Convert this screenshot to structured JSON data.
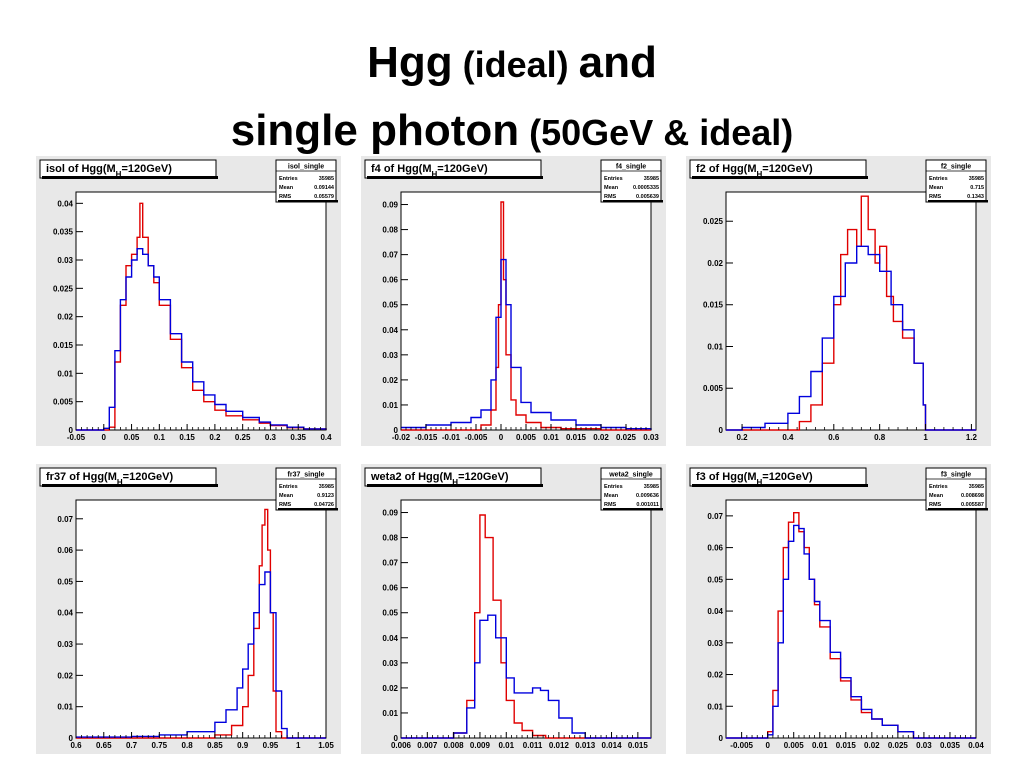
{
  "slide": {
    "title_line1_big": "Hgg",
    "title_line1_small": " (ideal) ",
    "title_line1_end": "and",
    "title_line2_big": "single photon",
    "title_line2_small": " (50GeV & ideal)"
  },
  "colors": {
    "signal": "#e00000",
    "single": "#0000dd",
    "frame": "#000000",
    "plot_bg": "#ffffff",
    "pad_bg": "#e8e8e8"
  },
  "chart_data": [
    {
      "type": "line",
      "title": "isol of Hgg(M_H=120GeV)",
      "stats": {
        "name": "isol_single",
        "entries": "35985",
        "mean": "0.09144",
        "rms": "0.05579"
      },
      "xlim": [
        -0.05,
        0.4
      ],
      "ylim": [
        0,
        0.042
      ],
      "xticks": [
        "-0.05",
        "0",
        "0.05",
        "0.1",
        "0.15",
        "0.2",
        "0.25",
        "0.3",
        "0.35",
        "0.4"
      ],
      "xtick_values": [
        -0.05,
        0,
        0.05,
        0.1,
        0.15,
        0.2,
        0.25,
        0.3,
        0.35,
        0.4
      ],
      "yticks": [
        "0.005",
        "0.01",
        "0.015",
        "0.02",
        "0.025",
        "0.03",
        "0.035",
        "0.04"
      ],
      "ytick_values": [
        0.005,
        0.01,
        0.015,
        0.02,
        0.025,
        0.03,
        0.035,
        0.04
      ],
      "series": [
        {
          "color": "#e00000",
          "x": [
            -0.05,
            0.0,
            0.01,
            0.02,
            0.03,
            0.04,
            0.05,
            0.06,
            0.065,
            0.07,
            0.08,
            0.09,
            0.1,
            0.12,
            0.14,
            0.16,
            0.18,
            0.2,
            0.22,
            0.25,
            0.28,
            0.3,
            0.33,
            0.36,
            0.4
          ],
          "y": [
            0,
            0,
            0.0005,
            0.012,
            0.022,
            0.029,
            0.031,
            0.034,
            0.04,
            0.034,
            0.029,
            0.026,
            0.022,
            0.016,
            0.011,
            0.007,
            0.005,
            0.0035,
            0.0025,
            0.0018,
            0.0012,
            0.0008,
            0.0004,
            0.0002,
            0
          ]
        },
        {
          "color": "#0000dd",
          "x": [
            -0.05,
            -0.01,
            0.0,
            0.01,
            0.02,
            0.03,
            0.04,
            0.05,
            0.06,
            0.07,
            0.08,
            0.09,
            0.1,
            0.12,
            0.14,
            0.16,
            0.18,
            0.2,
            0.22,
            0.25,
            0.28,
            0.3,
            0.33,
            0.36,
            0.4
          ],
          "y": [
            0,
            0,
            0.0003,
            0.004,
            0.014,
            0.023,
            0.027,
            0.03,
            0.032,
            0.031,
            0.029,
            0.027,
            0.023,
            0.017,
            0.012,
            0.0085,
            0.0062,
            0.0045,
            0.0033,
            0.0022,
            0.0014,
            0.0009,
            0.0005,
            0.0002,
            0
          ]
        }
      ]
    },
    {
      "type": "line",
      "title": "f4 of Hgg(M_H=120GeV)",
      "stats": {
        "name": "f4_single",
        "entries": "35985",
        "mean": "0.0005335",
        "rms": "0.005639"
      },
      "xlim": [
        -0.02,
        0.03
      ],
      "ylim": [
        0,
        0.095
      ],
      "xticks": [
        "-0.02",
        "-0.015",
        "-0.01",
        "-0.005",
        "0",
        "0.005",
        "0.01",
        "0.015",
        "0.02",
        "0.025",
        "0.03"
      ],
      "xtick_values": [
        -0.02,
        -0.015,
        -0.01,
        -0.005,
        0,
        0.005,
        0.01,
        0.015,
        0.02,
        0.025,
        0.03
      ],
      "yticks": [
        "0.01",
        "0.02",
        "0.03",
        "0.04",
        "0.05",
        "0.06",
        "0.07",
        "0.08",
        "0.09"
      ],
      "ytick_values": [
        0.01,
        0.02,
        0.03,
        0.04,
        0.05,
        0.06,
        0.07,
        0.08,
        0.09
      ],
      "series": [
        {
          "color": "#e00000",
          "x": [
            -0.02,
            -0.008,
            -0.004,
            -0.002,
            -0.001,
            -0.0005,
            0.0,
            0.0005,
            0.001,
            0.002,
            0.003,
            0.005,
            0.008,
            0.012,
            0.02,
            0.03
          ],
          "y": [
            0,
            0,
            0.002,
            0.008,
            0.025,
            0.05,
            0.091,
            0.06,
            0.03,
            0.012,
            0.006,
            0.003,
            0.001,
            0.0005,
            0,
            0
          ]
        },
        {
          "color": "#0000dd",
          "x": [
            -0.02,
            -0.015,
            -0.01,
            -0.006,
            -0.004,
            -0.002,
            -0.001,
            0.0,
            0.001,
            0.002,
            0.004,
            0.006,
            0.01,
            0.015,
            0.02,
            0.025,
            0.03
          ],
          "y": [
            0.001,
            0.002,
            0.003,
            0.005,
            0.008,
            0.02,
            0.045,
            0.068,
            0.05,
            0.025,
            0.011,
            0.007,
            0.004,
            0.002,
            0.001,
            0.0005,
            0
          ]
        }
      ]
    },
    {
      "type": "line",
      "title": "f2 of Hgg(M_H=120GeV)",
      "stats": {
        "name": "f2_single",
        "entries": "35985",
        "mean": "0.715",
        "rms": "0.1343"
      },
      "xlim": [
        0.13,
        1.22
      ],
      "ylim": [
        0,
        0.0285
      ],
      "xticks": [
        "0.2",
        "0.4",
        "0.6",
        "0.8",
        "1",
        "1.2"
      ],
      "xtick_values": [
        0.2,
        0.4,
        0.6,
        0.8,
        1.0,
        1.2
      ],
      "yticks": [
        "0.005",
        "0.01",
        "0.015",
        "0.02",
        "0.025"
      ],
      "ytick_values": [
        0.005,
        0.01,
        0.015,
        0.02,
        0.025
      ],
      "series": [
        {
          "color": "#e00000",
          "x": [
            0.13,
            0.4,
            0.45,
            0.5,
            0.55,
            0.6,
            0.63,
            0.66,
            0.7,
            0.72,
            0.75,
            0.78,
            0.8,
            0.83,
            0.86,
            0.9,
            0.95,
            0.99,
            1.0,
            1.05,
            1.22
          ],
          "y": [
            0,
            0,
            0.001,
            0.003,
            0.008,
            0.015,
            0.021,
            0.024,
            0.022,
            0.028,
            0.024,
            0.02,
            0.022,
            0.016,
            0.013,
            0.011,
            0.008,
            0.003,
            0,
            0,
            0
          ]
        },
        {
          "color": "#0000dd",
          "x": [
            0.13,
            0.2,
            0.3,
            0.4,
            0.45,
            0.5,
            0.55,
            0.6,
            0.65,
            0.7,
            0.75,
            0.8,
            0.85,
            0.9,
            0.95,
            0.99,
            1.0,
            1.05,
            1.22
          ],
          "y": [
            0,
            0.0003,
            0.0008,
            0.002,
            0.004,
            0.007,
            0.011,
            0.016,
            0.02,
            0.022,
            0.021,
            0.019,
            0.015,
            0.012,
            0.008,
            0.003,
            0,
            0,
            0
          ]
        }
      ]
    },
    {
      "type": "line",
      "title": "fr37 of Hgg(M_H=120GeV)",
      "stats": {
        "name": "fr37_single",
        "entries": "35985",
        "mean": "0.9123",
        "rms": "0.04726"
      },
      "xlim": [
        0.6,
        1.05
      ],
      "ylim": [
        0,
        0.076
      ],
      "xticks": [
        "0.6",
        "0.65",
        "0.7",
        "0.75",
        "0.8",
        "0.85",
        "0.9",
        "0.95",
        "1",
        "1.05"
      ],
      "xtick_values": [
        0.6,
        0.65,
        0.7,
        0.75,
        0.8,
        0.85,
        0.9,
        0.95,
        1.0,
        1.05
      ],
      "yticks": [
        "0.01",
        "0.02",
        "0.03",
        "0.04",
        "0.05",
        "0.06",
        "0.07"
      ],
      "ytick_values": [
        0.01,
        0.02,
        0.03,
        0.04,
        0.05,
        0.06,
        0.07
      ],
      "series": [
        {
          "color": "#e00000",
          "x": [
            0.6,
            0.8,
            0.85,
            0.88,
            0.9,
            0.91,
            0.92,
            0.93,
            0.935,
            0.94,
            0.945,
            0.95,
            0.955,
            0.96,
            0.97,
            1.05
          ],
          "y": [
            0,
            0,
            0.001,
            0.004,
            0.01,
            0.02,
            0.035,
            0.055,
            0.068,
            0.073,
            0.06,
            0.04,
            0.015,
            0.002,
            0,
            0
          ]
        },
        {
          "color": "#0000dd",
          "x": [
            0.6,
            0.7,
            0.75,
            0.8,
            0.85,
            0.87,
            0.89,
            0.9,
            0.91,
            0.92,
            0.93,
            0.94,
            0.95,
            0.96,
            0.97,
            0.98,
            1.05
          ],
          "y": [
            0.0003,
            0.0005,
            0.001,
            0.002,
            0.005,
            0.009,
            0.016,
            0.022,
            0.03,
            0.04,
            0.049,
            0.053,
            0.04,
            0.015,
            0.003,
            0,
            0
          ]
        }
      ]
    },
    {
      "type": "line",
      "title": "weta2 of Hgg(M_H=120GeV)",
      "stats": {
        "name": "weta2_single",
        "entries": "35985",
        "mean": "0.009636",
        "rms": "0.001011"
      },
      "xlim": [
        0.006,
        0.0155
      ],
      "ylim": [
        0,
        0.095
      ],
      "xticks": [
        "0.006",
        "0.007",
        "0.008",
        "0.009",
        "0.01",
        "0.011",
        "0.012",
        "0.013",
        "0.014",
        "0.015"
      ],
      "xtick_values": [
        0.006,
        0.007,
        0.008,
        0.009,
        0.01,
        0.011,
        0.012,
        0.013,
        0.014,
        0.015
      ],
      "yticks": [
        "0.01",
        "0.02",
        "0.03",
        "0.04",
        "0.05",
        "0.06",
        "0.07",
        "0.08",
        "0.09"
      ],
      "ytick_values": [
        0.01,
        0.02,
        0.03,
        0.04,
        0.05,
        0.06,
        0.07,
        0.08,
        0.09
      ],
      "series": [
        {
          "color": "#e00000",
          "x": [
            0.006,
            0.0075,
            0.008,
            0.0085,
            0.0088,
            0.009,
            0.0092,
            0.0095,
            0.0098,
            0.01,
            0.0103,
            0.0106,
            0.011,
            0.0115,
            0.0155
          ],
          "y": [
            0,
            0,
            0.002,
            0.015,
            0.05,
            0.089,
            0.08,
            0.055,
            0.03,
            0.015,
            0.006,
            0.003,
            0.001,
            0,
            0
          ]
        },
        {
          "color": "#0000dd",
          "x": [
            0.006,
            0.0075,
            0.008,
            0.0085,
            0.0088,
            0.009,
            0.0093,
            0.0096,
            0.01,
            0.0103,
            0.0106,
            0.011,
            0.0113,
            0.0116,
            0.012,
            0.0125,
            0.013,
            0.0155
          ],
          "y": [
            0,
            0,
            0.002,
            0.012,
            0.03,
            0.047,
            0.049,
            0.04,
            0.024,
            0.018,
            0.018,
            0.02,
            0.019,
            0.015,
            0.008,
            0.002,
            0,
            0
          ]
        }
      ]
    },
    {
      "type": "line",
      "title": "f3 of Hgg(M_H=120GeV)",
      "stats": {
        "name": "f3_single",
        "entries": "35985",
        "mean": "0.008698",
        "rms": "0.005587"
      },
      "xlim": [
        -0.008,
        0.04
      ],
      "ylim": [
        0,
        0.075
      ],
      "xticks": [
        "-0.005",
        "0",
        "0.005",
        "0.01",
        "0.015",
        "0.02",
        "0.025",
        "0.03",
        "0.035",
        "0.04"
      ],
      "xtick_values": [
        -0.005,
        0,
        0.005,
        0.01,
        0.015,
        0.02,
        0.025,
        0.03,
        0.035,
        0.04
      ],
      "yticks": [
        "0.01",
        "0.02",
        "0.03",
        "0.04",
        "0.05",
        "0.06",
        "0.07"
      ],
      "ytick_values": [
        0.01,
        0.02,
        0.03,
        0.04,
        0.05,
        0.06,
        0.07
      ],
      "series": [
        {
          "color": "#e00000",
          "x": [
            -0.008,
            -0.001,
            0.0,
            0.001,
            0.002,
            0.003,
            0.004,
            0.005,
            0.006,
            0.007,
            0.008,
            0.009,
            0.01,
            0.012,
            0.014,
            0.016,
            0.018,
            0.02,
            0.022,
            0.025,
            0.028,
            0.04
          ],
          "y": [
            0,
            0,
            0.002,
            0.015,
            0.04,
            0.06,
            0.068,
            0.071,
            0.065,
            0.06,
            0.05,
            0.042,
            0.035,
            0.025,
            0.018,
            0.012,
            0.008,
            0.006,
            0.004,
            0.002,
            0,
            0
          ]
        },
        {
          "color": "#0000dd",
          "x": [
            -0.008,
            -0.001,
            0.0,
            0.001,
            0.002,
            0.003,
            0.004,
            0.005,
            0.006,
            0.007,
            0.008,
            0.009,
            0.01,
            0.012,
            0.014,
            0.016,
            0.018,
            0.02,
            0.022,
            0.025,
            0.028,
            0.04
          ],
          "y": [
            0,
            0,
            0.001,
            0.01,
            0.03,
            0.05,
            0.062,
            0.067,
            0.066,
            0.058,
            0.05,
            0.043,
            0.037,
            0.027,
            0.019,
            0.013,
            0.009,
            0.006,
            0.004,
            0.002,
            0,
            0
          ]
        }
      ]
    }
  ]
}
